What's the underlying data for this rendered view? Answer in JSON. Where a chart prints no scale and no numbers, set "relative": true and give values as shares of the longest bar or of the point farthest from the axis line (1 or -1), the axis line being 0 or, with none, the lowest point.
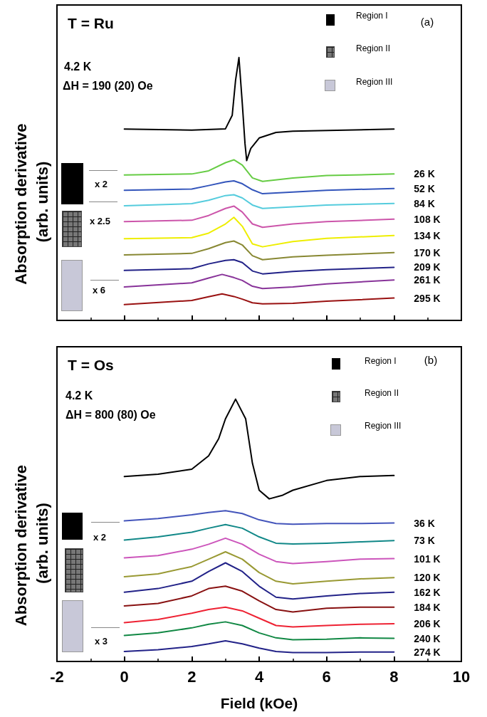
{
  "chart_data": [
    {
      "type": "line",
      "title": "T = Ru",
      "ylabel": "Absorption derivative (arb. units)",
      "relative": true,
      "xlim": [
        -2,
        10
      ],
      "xticks": [
        -2,
        0,
        2,
        4,
        6,
        8,
        10
      ],
      "tick_labels": false,
      "grid": false,
      "legend": false,
      "marker": "none",
      "line_style": "solid",
      "annotations": [
        "(a)",
        "4.2 K",
        "ΔH = 190 (20) Oe",
        "Region I",
        "Region II",
        "Region III",
        "x 2",
        "x 2.5",
        "x 6"
      ],
      "series": [
        {
          "color": "#000000",
          "x": [
            0,
            2,
            3.0,
            3.2,
            3.3,
            3.4,
            3.5,
            3.58,
            3.63,
            3.75,
            4.0,
            4.5,
            5,
            8
          ],
          "values": [
            0.728,
            0.724,
            0.729,
            0.78,
            0.914,
            1.0,
            0.824,
            0.672,
            0.608,
            0.654,
            0.694,
            0.715,
            0.72,
            0.728
          ]
        },
        {
          "name": "26 K",
          "color": "#66cc44",
          "x": [
            0,
            2,
            2.5,
            3,
            3.25,
            3.5,
            3.8,
            4.1,
            5,
            6,
            8
          ],
          "values": [
            0.553,
            0.557,
            0.569,
            0.6,
            0.611,
            0.591,
            0.542,
            0.529,
            0.542,
            0.551,
            0.557
          ]
        },
        {
          "name": "52 K",
          "color": "#3355bb",
          "x": [
            0,
            2,
            2.5,
            3,
            3.25,
            3.5,
            3.8,
            4.1,
            5,
            6,
            8
          ],
          "values": [
            0.495,
            0.5,
            0.513,
            0.527,
            0.531,
            0.52,
            0.497,
            0.482,
            0.488,
            0.495,
            0.502
          ]
        },
        {
          "name": "84 K",
          "color": "#55ccdd",
          "x": [
            0,
            2,
            2.5,
            3,
            3.25,
            3.5,
            3.8,
            4.1,
            5,
            6,
            8
          ],
          "values": [
            0.436,
            0.444,
            0.457,
            0.475,
            0.478,
            0.466,
            0.439,
            0.426,
            0.432,
            0.439,
            0.445
          ]
        },
        {
          "name": "108 K",
          "color": "#cc55aa",
          "x": [
            0,
            2,
            2.5,
            3,
            3.25,
            3.5,
            3.8,
            4.1,
            5,
            6,
            8
          ],
          "values": [
            0.376,
            0.381,
            0.399,
            0.426,
            0.435,
            0.412,
            0.367,
            0.354,
            0.367,
            0.376,
            0.385
          ]
        },
        {
          "name": "134 K",
          "color": "#eeee00",
          "x": [
            0,
            2,
            2.5,
            3,
            3.25,
            3.5,
            3.8,
            4.1,
            5,
            6,
            8
          ],
          "values": [
            0.311,
            0.315,
            0.332,
            0.367,
            0.392,
            0.358,
            0.291,
            0.28,
            0.3,
            0.312,
            0.323
          ]
        },
        {
          "name": "170 K",
          "color": "#888833",
          "x": [
            0,
            2,
            2.5,
            3,
            3.25,
            3.5,
            3.8,
            4.1,
            5,
            6,
            8
          ],
          "values": [
            0.249,
            0.255,
            0.273,
            0.296,
            0.302,
            0.287,
            0.246,
            0.231,
            0.242,
            0.248,
            0.258
          ]
        },
        {
          "name": "209 K",
          "color": "#222288",
          "x": [
            0,
            2,
            2.5,
            3,
            3.25,
            3.5,
            3.8,
            4.1,
            5,
            6,
            8
          ],
          "values": [
            0.19,
            0.197,
            0.215,
            0.228,
            0.231,
            0.22,
            0.188,
            0.177,
            0.186,
            0.193,
            0.202
          ]
        },
        {
          "name": "261 K",
          "color": "#883399",
          "x": [
            0,
            2,
            2.5,
            2.9,
            3.25,
            3.5,
            3.8,
            4.1,
            5,
            6,
            8
          ],
          "values": [
            0.127,
            0.143,
            0.161,
            0.175,
            0.163,
            0.152,
            0.13,
            0.121,
            0.127,
            0.139,
            0.154
          ]
        },
        {
          "name": "295 K",
          "color": "#991111",
          "x": [
            0,
            2,
            2.5,
            2.9,
            3.25,
            3.5,
            3.8,
            4.1,
            5,
            6,
            8
          ],
          "values": [
            0.06,
            0.076,
            0.09,
            0.101,
            0.091,
            0.081,
            0.067,
            0.063,
            0.065,
            0.073,
            0.085
          ]
        }
      ]
    },
    {
      "type": "line",
      "title": "T = Os",
      "xlabel": "Field (kOe)",
      "ylabel": "Absorption derivative (arb. units)",
      "relative": true,
      "xlim": [
        -2,
        10
      ],
      "xticks": [
        -2,
        0,
        2,
        4,
        6,
        8,
        10
      ],
      "tick_labels": "x",
      "grid": false,
      "legend": false,
      "marker": "none",
      "line_style": "solid",
      "annotations": [
        "(b)",
        "4.2 K",
        "ΔH = 800 (80) Oe",
        "Region I",
        "Region II",
        "Region III",
        "x 2",
        "x 3"
      ],
      "series": [
        {
          "color": "#000000",
          "x": [
            0,
            1,
            2,
            2.5,
            2.8,
            3.0,
            3.3,
            3.6,
            3.8,
            4.0,
            4.3,
            4.7,
            5.0,
            6,
            7,
            8
          ],
          "values": [
            0.705,
            0.714,
            0.733,
            0.784,
            0.85,
            0.925,
            1.0,
            0.925,
            0.756,
            0.653,
            0.62,
            0.634,
            0.653,
            0.69,
            0.705,
            0.709
          ]
        },
        {
          "name": "36 K",
          "color": "#4455bb",
          "x": [
            0,
            1,
            2,
            2.5,
            3,
            3.5,
            4,
            4.5,
            5,
            6,
            7,
            8
          ],
          "values": [
            0.536,
            0.545,
            0.559,
            0.568,
            0.575,
            0.564,
            0.54,
            0.526,
            0.523,
            0.526,
            0.526,
            0.528
          ]
        },
        {
          "name": "73 K",
          "color": "#118888",
          "x": [
            0,
            1,
            2,
            2.5,
            3,
            3.5,
            4,
            4.5,
            5,
            6,
            7,
            8
          ],
          "values": [
            0.463,
            0.475,
            0.493,
            0.508,
            0.522,
            0.508,
            0.475,
            0.451,
            0.448,
            0.451,
            0.456,
            0.461
          ]
        },
        {
          "name": "101 K",
          "color": "#cc55bb",
          "x": [
            0,
            1,
            2,
            2.5,
            3,
            3.5,
            4,
            4.5,
            5,
            6,
            7,
            8
          ],
          "values": [
            0.395,
            0.404,
            0.428,
            0.447,
            0.47,
            0.447,
            0.409,
            0.381,
            0.373,
            0.381,
            0.39,
            0.392
          ]
        },
        {
          "name": "120 K",
          "color": "#999933",
          "x": [
            0,
            1,
            2,
            2.5,
            3,
            3.5,
            4,
            4.5,
            5,
            6,
            7,
            8
          ],
          "values": [
            0.323,
            0.334,
            0.362,
            0.39,
            0.418,
            0.39,
            0.339,
            0.306,
            0.296,
            0.306,
            0.315,
            0.32
          ]
        },
        {
          "name": "162 K",
          "color": "#222288",
          "x": [
            0,
            1,
            2,
            2.5,
            3,
            3.5,
            4,
            4.5,
            5,
            6,
            7,
            8
          ],
          "values": [
            0.264,
            0.278,
            0.306,
            0.343,
            0.376,
            0.343,
            0.287,
            0.245,
            0.238,
            0.25,
            0.259,
            0.264
          ]
        },
        {
          "name": "184 K",
          "color": "#881111",
          "x": [
            0,
            1,
            2,
            2.5,
            3,
            3.5,
            4,
            4.5,
            5,
            6,
            7,
            8
          ],
          "values": [
            0.212,
            0.221,
            0.25,
            0.278,
            0.287,
            0.268,
            0.231,
            0.198,
            0.189,
            0.203,
            0.207,
            0.207
          ]
        },
        {
          "name": "206 K",
          "color": "#ee2233",
          "x": [
            0,
            1,
            2,
            2.5,
            3,
            3.5,
            4,
            4.5,
            5,
            6,
            7,
            8
          ],
          "values": [
            0.148,
            0.16,
            0.184,
            0.198,
            0.207,
            0.193,
            0.165,
            0.137,
            0.132,
            0.137,
            0.142,
            0.144
          ]
        },
        {
          "name": "240 K",
          "color": "#118844",
          "x": [
            0,
            1,
            2,
            2.5,
            3,
            3.5,
            4,
            4.5,
            5,
            6,
            7,
            8
          ],
          "values": [
            0.099,
            0.109,
            0.128,
            0.142,
            0.151,
            0.137,
            0.109,
            0.09,
            0.083,
            0.085,
            0.09,
            0.088
          ]
        },
        {
          "name": "274 K",
          "color": "#222288",
          "x": [
            0,
            1,
            2,
            2.5,
            3,
            3.5,
            4,
            4.5,
            5,
            6,
            7,
            8
          ],
          "values": [
            0.038,
            0.045,
            0.057,
            0.067,
            0.079,
            0.067,
            0.051,
            0.038,
            0.034,
            0.034,
            0.036,
            0.036
          ]
        }
      ]
    }
  ]
}
